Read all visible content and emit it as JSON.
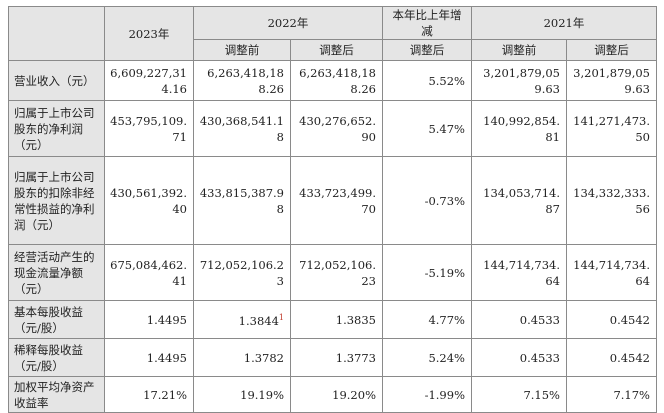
{
  "header": {
    "y2023": "2023年",
    "y2022": "2022年",
    "change": "本年比上年增减",
    "y2021": "2021年",
    "before": "调整前",
    "after": "调整后"
  },
  "rows": [
    {
      "label": "营业收入（元）",
      "v2023": "6,609,227,314.16",
      "v2022b": "6,263,418,188.26",
      "v2022a": "6,263,418,188.26",
      "chg": "5.52%",
      "v2021b": "3,201,879,059.63",
      "v2021a": "3,201,879,059.63"
    },
    {
      "label": "归属于上市公司股东的净利润（元）",
      "v2023": "453,795,109.71",
      "v2022b": "430,368,541.18",
      "v2022a": "430,276,652.90",
      "chg": "5.47%",
      "v2021b": "140,992,854.81",
      "v2021a": "141,271,473.50"
    },
    {
      "label": "归属于上市公司股东的扣除非经常性损益的净利润（元）",
      "v2023": "430,561,392.40",
      "v2022b": "433,815,387.98",
      "v2022a": "433,723,499.70",
      "chg": "-0.73%",
      "v2021b": "134,053,714.87",
      "v2021a": "134,332,333.56"
    },
    {
      "label": "经营活动产生的现金流量净额（元）",
      "v2023": "675,084,462.41",
      "v2022b": "712,052,106.23",
      "v2022a": "712,052,106.23",
      "chg": "-5.19%",
      "v2021b": "144,714,734.64",
      "v2021a": "144,714,734.64"
    },
    {
      "label": "基本每股收益（元/股）",
      "v2023": "1.4495",
      "v2022b": "1.3844",
      "v2022b_note": "1",
      "v2022a": "1.3835",
      "chg": "4.77%",
      "v2021b": "0.4533",
      "v2021a": "0.4542"
    },
    {
      "label": "稀释每股收益（元/股）",
      "v2023": "1.4495",
      "v2022b": "1.3782",
      "v2022a": "1.3773",
      "chg": "5.24%",
      "v2021b": "0.4533",
      "v2021a": "0.4542"
    },
    {
      "label": "加权平均净资产收益率",
      "v2023": "17.21%",
      "v2022b": "19.19%",
      "v2022a": "19.20%",
      "chg": "-1.99%",
      "v2021b": "7.15%",
      "v2021a": "7.17%"
    }
  ]
}
